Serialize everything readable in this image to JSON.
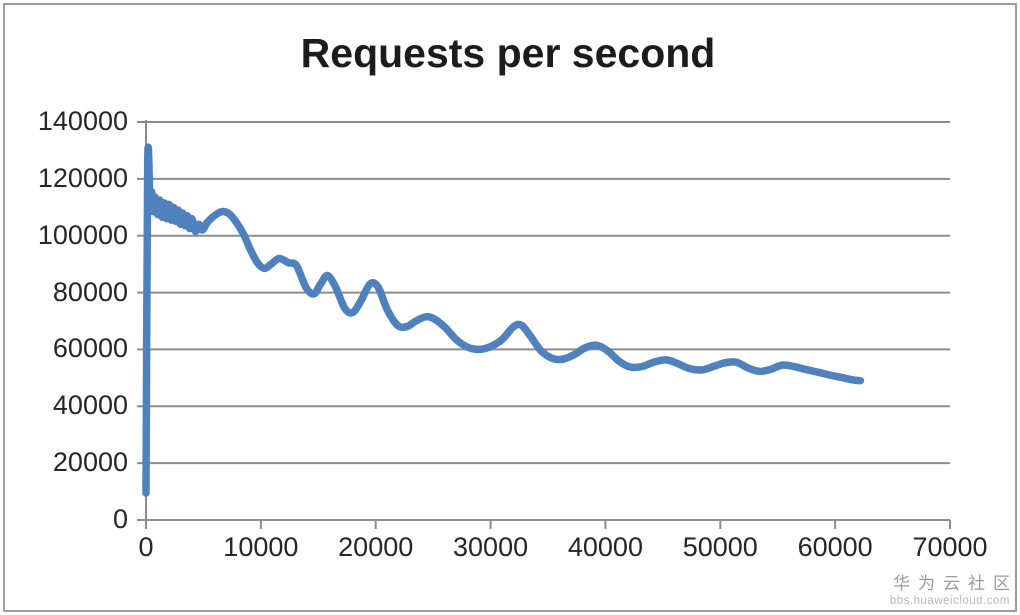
{
  "watermark": {
    "line1": "华为云社区",
    "line2": "bbs.huaweicloud.com"
  },
  "chart_data": {
    "type": "line",
    "title": "Requests per second",
    "xlabel": "",
    "ylabel": "",
    "xlim": [
      0,
      70000
    ],
    "ylim": [
      0,
      140000
    ],
    "grid": true,
    "legend": false,
    "x_tick_labels": [
      "0",
      "10000",
      "20000",
      "30000",
      "40000",
      "50000",
      "60000",
      "70000"
    ],
    "x_ticks": [
      0,
      10000,
      20000,
      30000,
      40000,
      50000,
      60000,
      70000
    ],
    "y_tick_labels": [
      "0",
      "20000",
      "40000",
      "60000",
      "80000",
      "100000",
      "120000",
      "140000"
    ],
    "y_ticks": [
      0,
      20000,
      40000,
      60000,
      80000,
      100000,
      120000,
      140000
    ],
    "colors": {
      "line": "#4F81BD",
      "grid": "#8c8c8c",
      "axis": "#8c8c8c",
      "text": "#262626",
      "watermark1": "#9b9b9b",
      "watermark2": "#b9b9b9"
    },
    "series": [
      {
        "name": "Requests per second",
        "color": "#4F81BD",
        "points": [
          [
            0,
            9500
          ],
          [
            150,
            126000
          ],
          [
            350,
            111000
          ],
          [
            500,
            115500
          ],
          [
            650,
            108500
          ],
          [
            800,
            113500
          ],
          [
            1000,
            107500
          ],
          [
            1200,
            112500
          ],
          [
            1400,
            106500
          ],
          [
            1600,
            111500
          ],
          [
            1800,
            106000
          ],
          [
            2000,
            111000
          ],
          [
            2200,
            105500
          ],
          [
            2400,
            110000
          ],
          [
            2600,
            105000
          ],
          [
            2800,
            109000
          ],
          [
            3000,
            104000
          ],
          [
            3200,
            108000
          ],
          [
            3400,
            103500
          ],
          [
            3600,
            107000
          ],
          [
            3800,
            102500
          ],
          [
            4000,
            106000
          ],
          [
            4300,
            101500
          ],
          [
            4600,
            104000
          ],
          [
            4900,
            102000
          ],
          [
            5300,
            104500
          ],
          [
            5800,
            106500
          ],
          [
            6300,
            108000
          ],
          [
            6800,
            108500
          ],
          [
            7300,
            107500
          ],
          [
            7900,
            104500
          ],
          [
            8500,
            100500
          ],
          [
            9100,
            95000
          ],
          [
            9700,
            90500
          ],
          [
            10300,
            88500
          ],
          [
            10900,
            90000
          ],
          [
            11600,
            92000
          ],
          [
            12400,
            90500
          ],
          [
            13100,
            89500
          ],
          [
            13900,
            82000
          ],
          [
            14600,
            79500
          ],
          [
            15200,
            83000
          ],
          [
            15800,
            86000
          ],
          [
            16500,
            82000
          ],
          [
            17300,
            74500
          ],
          [
            18000,
            73000
          ],
          [
            18700,
            77000
          ],
          [
            19500,
            83000
          ],
          [
            20200,
            82000
          ],
          [
            21000,
            74000
          ],
          [
            21900,
            68500
          ],
          [
            22700,
            68000
          ],
          [
            23500,
            70000
          ],
          [
            24400,
            71500
          ],
          [
            25200,
            70500
          ],
          [
            26100,
            67500
          ],
          [
            27000,
            63500
          ],
          [
            28000,
            60800
          ],
          [
            29000,
            60000
          ],
          [
            30000,
            61000
          ],
          [
            31000,
            63500
          ],
          [
            32000,
            68000
          ],
          [
            32700,
            68500
          ],
          [
            33500,
            64500
          ],
          [
            34400,
            59500
          ],
          [
            35300,
            57000
          ],
          [
            36200,
            56500
          ],
          [
            37200,
            58000
          ],
          [
            38200,
            60500
          ],
          [
            39200,
            61500
          ],
          [
            40200,
            59500
          ],
          [
            41200,
            55800
          ],
          [
            42200,
            53800
          ],
          [
            43200,
            54000
          ],
          [
            44200,
            55500
          ],
          [
            45300,
            56300
          ],
          [
            46300,
            55000
          ],
          [
            47300,
            53300
          ],
          [
            48400,
            52800
          ],
          [
            49400,
            54000
          ],
          [
            50400,
            55300
          ],
          [
            51400,
            55500
          ],
          [
            52400,
            53500
          ],
          [
            53400,
            52300
          ],
          [
            54400,
            53000
          ],
          [
            55400,
            54500
          ],
          [
            56400,
            54000
          ],
          [
            57400,
            53000
          ],
          [
            58500,
            52000
          ],
          [
            59500,
            51000
          ],
          [
            60500,
            50200
          ],
          [
            61500,
            49300
          ],
          [
            62200,
            49000
          ]
        ]
      }
    ]
  }
}
